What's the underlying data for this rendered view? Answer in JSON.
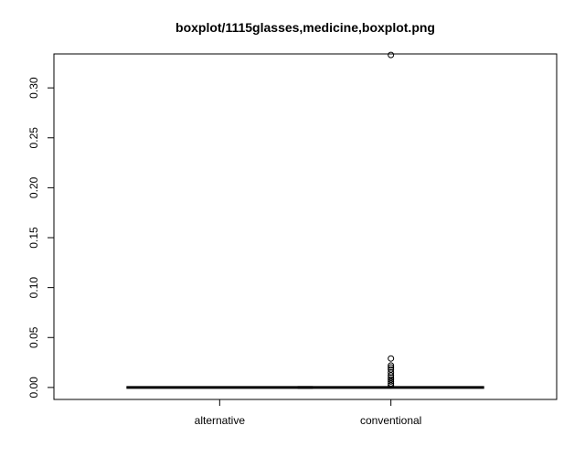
{
  "chart_data": {
    "type": "boxplot",
    "title": "boxplot/1115glasses,medicine,boxplot.png",
    "xlabel": "",
    "ylabel": "",
    "ylim": [
      -0.012,
      0.334
    ],
    "y_ticks": [
      0.0,
      0.05,
      0.1,
      0.15,
      0.2,
      0.25,
      0.3
    ],
    "y_tick_labels": [
      "0.00",
      "0.05",
      "0.10",
      "0.15",
      "0.20",
      "0.25",
      "0.30"
    ],
    "categories": [
      "alternative",
      "conventional"
    ],
    "boxes": [
      {
        "name": "alternative",
        "min": 0,
        "q1": 0,
        "median": 0,
        "q3": 0,
        "max": 0,
        "outliers": []
      },
      {
        "name": "conventional",
        "min": 0,
        "q1": 0,
        "median": 0,
        "q3": 0,
        "max": 0,
        "outliers": [
          0.333,
          0.029,
          0.022,
          0.02,
          0.018,
          0.015,
          0.012,
          0.01,
          0.008,
          0.006,
          0.004,
          0.002
        ]
      }
    ],
    "grid": false,
    "legend": "none"
  }
}
